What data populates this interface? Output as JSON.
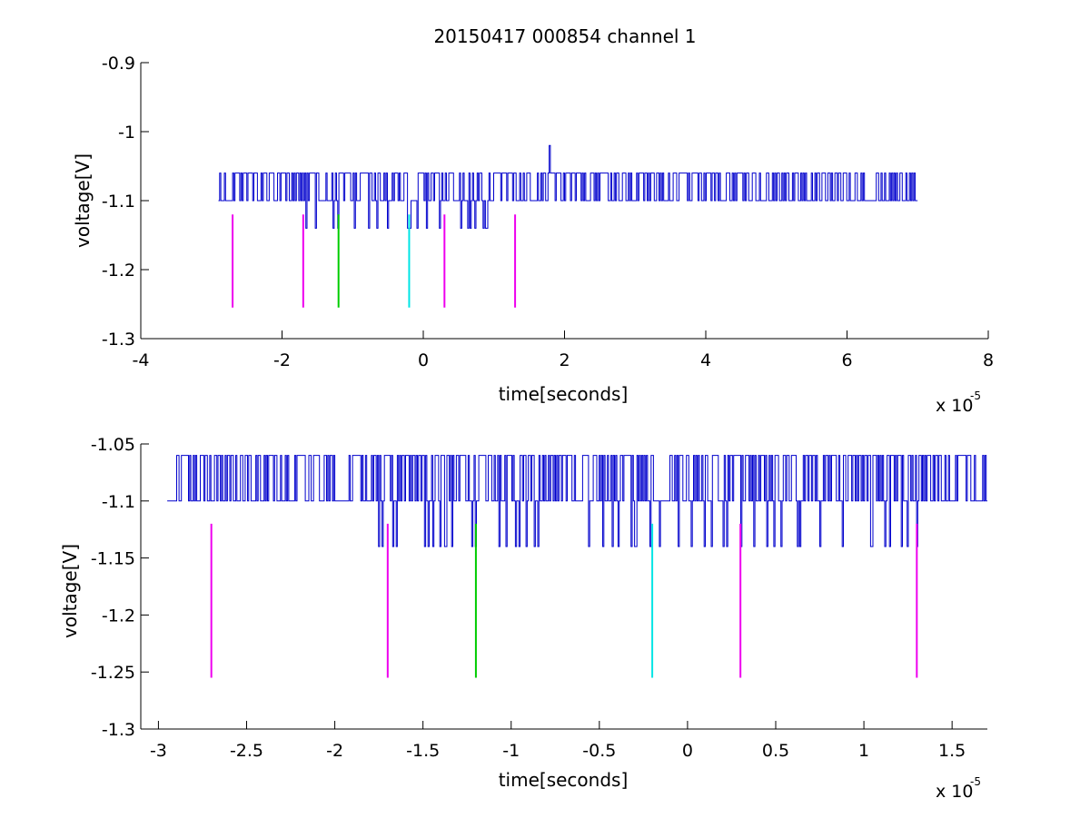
{
  "chart_data": [
    {
      "type": "line",
      "title": "20150417 000854 channel 1",
      "xlabel": "time[seconds]",
      "ylabel": "voltage[V]",
      "x_multiplier_label": {
        "base": "x 10",
        "exponent": "-5"
      },
      "xlim": [
        -4e-05,
        8e-05
      ],
      "ylim": [
        -1.3,
        -0.9
      ],
      "x_ticks": [
        -4e-05,
        -2e-05,
        0,
        2e-05,
        4e-05,
        6e-05,
        8e-05
      ],
      "x_tick_labels": [
        "-4",
        "-2",
        "0",
        "2",
        "4",
        "6",
        "8"
      ],
      "y_ticks": [
        -1.3,
        -1.2,
        -1.1,
        -1.0,
        -0.9
      ],
      "y_tick_labels": [
        "-1.3",
        "-1.2",
        "-1.1",
        "-1",
        "-0.9"
      ],
      "grid": false,
      "series": [
        {
          "kind": "noise-trace",
          "color": "#0000cc",
          "x_range": [
            -2.9e-05,
            7e-05
          ],
          "levels": [
            -1.14,
            -1.1,
            -1.06
          ],
          "baseline": -1.1,
          "spike": {
            "x": 1.78e-05,
            "y": -1.02
          },
          "dense_upper_segments": [
            [
              -2.9e-05,
              -2e-06
            ],
            [
              -1e-06,
              7e-05
            ]
          ],
          "dense_lower_segments": [
            [
              -1.8e-05,
              1.3e-05
            ]
          ]
        }
      ],
      "markers": [
        {
          "x": -2.7e-05,
          "y_top": -1.12,
          "y_bottom": -1.255,
          "color": "#ee00ee"
        },
        {
          "x": -1.7e-05,
          "y_top": -1.12,
          "y_bottom": -1.255,
          "color": "#ee00ee"
        },
        {
          "x": -1.2e-05,
          "y_top": -1.12,
          "y_bottom": -1.255,
          "color": "#00cc00"
        },
        {
          "x": -2e-06,
          "y_top": -1.12,
          "y_bottom": -1.255,
          "color": "#00e5e5"
        },
        {
          "x": 3e-06,
          "y_top": -1.12,
          "y_bottom": -1.255,
          "color": "#ee00ee"
        },
        {
          "x": 1.3e-05,
          "y_top": -1.12,
          "y_bottom": -1.255,
          "color": "#ee00ee"
        }
      ]
    },
    {
      "type": "line",
      "title": "",
      "xlabel": "time[seconds]",
      "ylabel": "voltage[V]",
      "x_multiplier_label": {
        "base": "x 10",
        "exponent": "-5"
      },
      "xlim": [
        -3.1e-05,
        1.7e-05
      ],
      "ylim": [
        -1.3,
        -1.05
      ],
      "x_ticks": [
        -3e-05,
        -2.5e-05,
        -2e-05,
        -1.5e-05,
        -1e-05,
        -5e-06,
        0,
        5e-06,
        1e-05,
        1.5e-05
      ],
      "x_tick_labels": [
        "-3",
        "-2.5",
        "-2",
        "-1.5",
        "-1",
        "-0.5",
        "0",
        "0.5",
        "1",
        "1.5"
      ],
      "y_ticks": [
        -1.3,
        -1.25,
        -1.2,
        -1.15,
        -1.1,
        -1.05
      ],
      "y_tick_labels": [
        "-1.3",
        "-1.25",
        "-1.2",
        "-1.15",
        "-1.1",
        "-1.05"
      ],
      "grid": false,
      "series": [
        {
          "kind": "noise-trace",
          "color": "#0000cc",
          "x_range": [
            -2.95e-05,
            1.7e-05
          ],
          "levels": [
            -1.14,
            -1.1,
            -1.06
          ],
          "baseline": -1.1,
          "dense_upper_segments": [
            [
              -2.9e-05,
              -2e-06
            ],
            [
              -1e-06,
              1.7e-05
            ]
          ],
          "dense_lower_segments": [
            [
              -1.8e-05,
              1.3e-05
            ]
          ]
        }
      ],
      "markers": [
        {
          "x": -2.7e-05,
          "y_top": -1.12,
          "y_bottom": -1.255,
          "color": "#ee00ee"
        },
        {
          "x": -1.7e-05,
          "y_top": -1.12,
          "y_bottom": -1.255,
          "color": "#ee00ee"
        },
        {
          "x": -1.2e-05,
          "y_top": -1.12,
          "y_bottom": -1.255,
          "color": "#00cc00"
        },
        {
          "x": -2e-06,
          "y_top": -1.12,
          "y_bottom": -1.255,
          "color": "#00e5e5"
        },
        {
          "x": 3e-06,
          "y_top": -1.12,
          "y_bottom": -1.255,
          "color": "#ee00ee"
        },
        {
          "x": 1.3e-05,
          "y_top": -1.12,
          "y_bottom": -1.255,
          "color": "#ee00ee"
        }
      ]
    }
  ]
}
